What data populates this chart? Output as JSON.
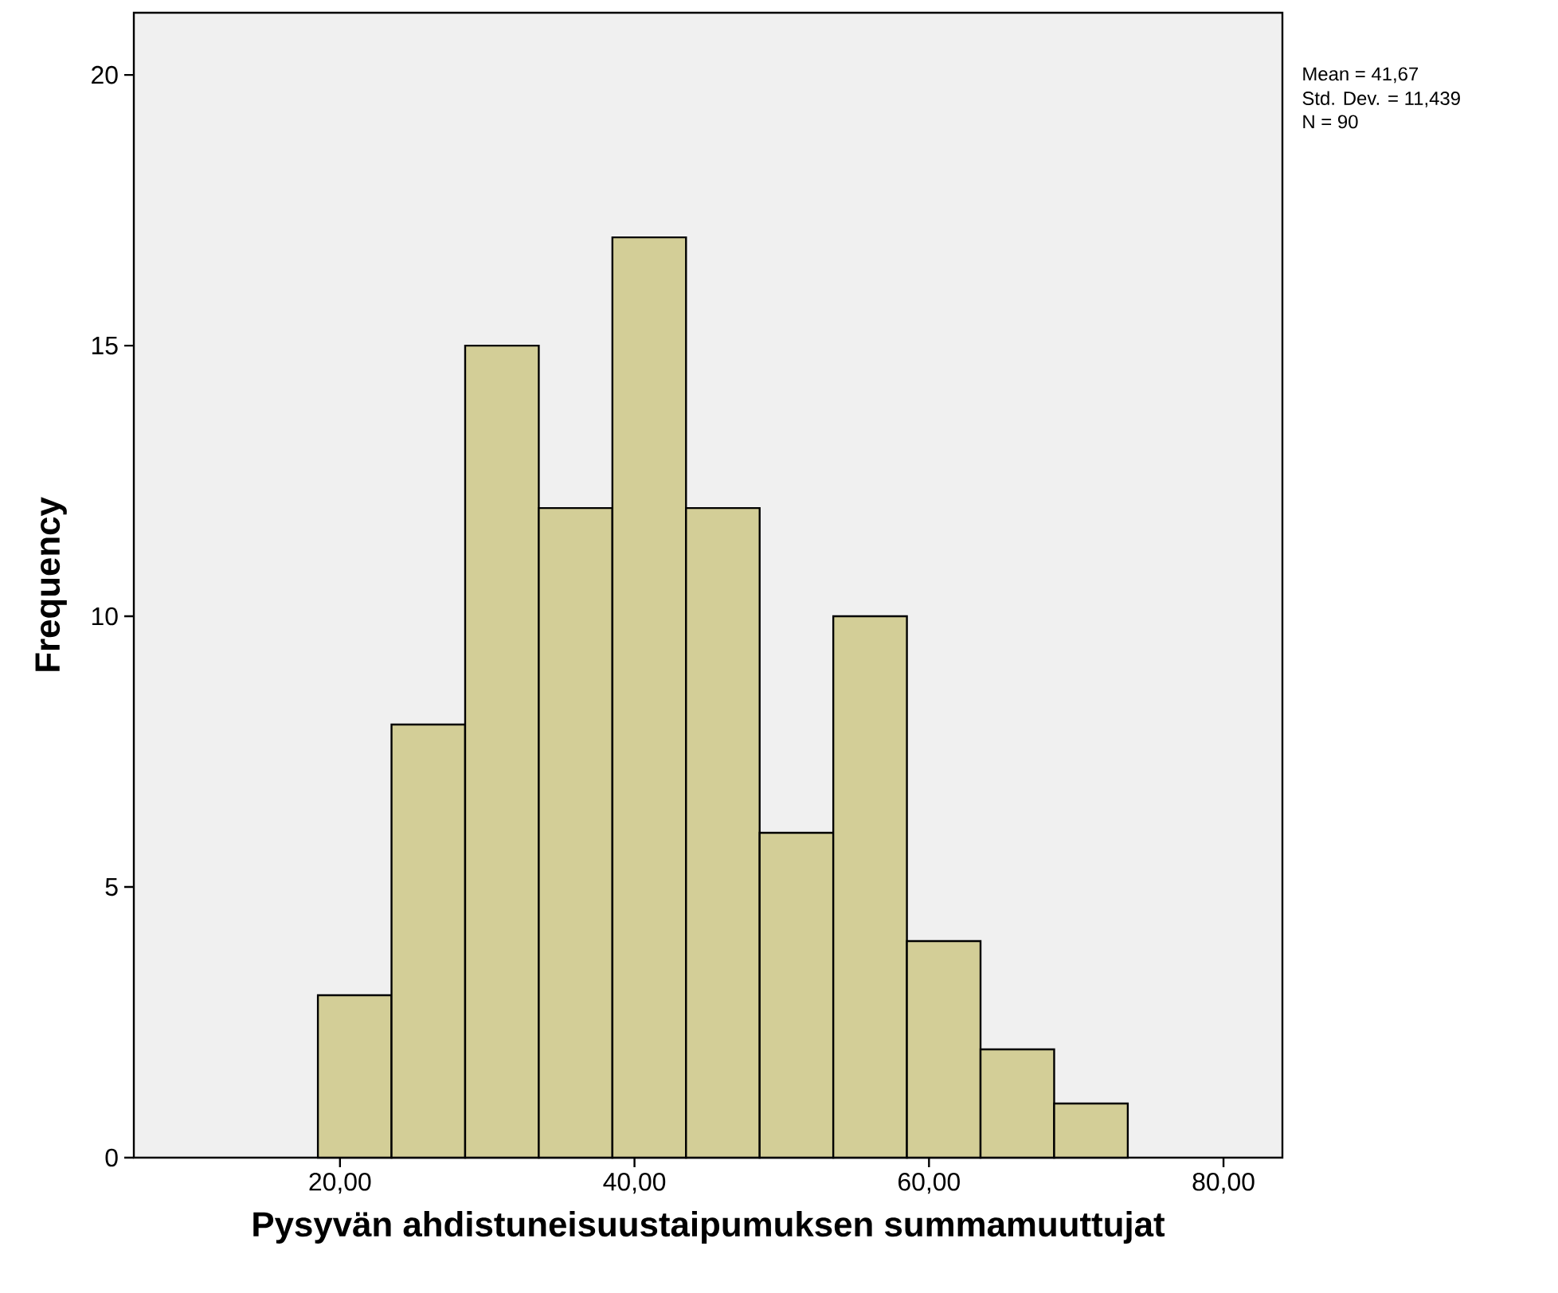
{
  "chart_data": {
    "type": "histogram",
    "xlabel": "Pysyvän ahdistuneisuustaipumuksen summamuuttujat",
    "ylabel": "Frequency",
    "bins": [
      18.5,
      23.5,
      28.5,
      33.5,
      38.5,
      43.5,
      48.5,
      53.5,
      58.5,
      63.5,
      68.5,
      73.5
    ],
    "values": [
      3,
      8,
      15,
      12,
      17,
      12,
      6,
      10,
      4,
      2,
      1
    ],
    "color": "#d3ce97",
    "xlim": [
      6,
      84
    ],
    "ylim": [
      0,
      21.15
    ],
    "xticks": [
      {
        "value": 20,
        "label": "20,00"
      },
      {
        "value": 40,
        "label": "40,00"
      },
      {
        "value": 60,
        "label": "60,00"
      },
      {
        "value": 80,
        "label": "80,00"
      }
    ],
    "yticks": [
      0,
      5,
      10,
      15,
      20
    ],
    "annotations": [
      "Mean = 41,67",
      "Std. Dev. = 11,439",
      "N = 90"
    ]
  }
}
